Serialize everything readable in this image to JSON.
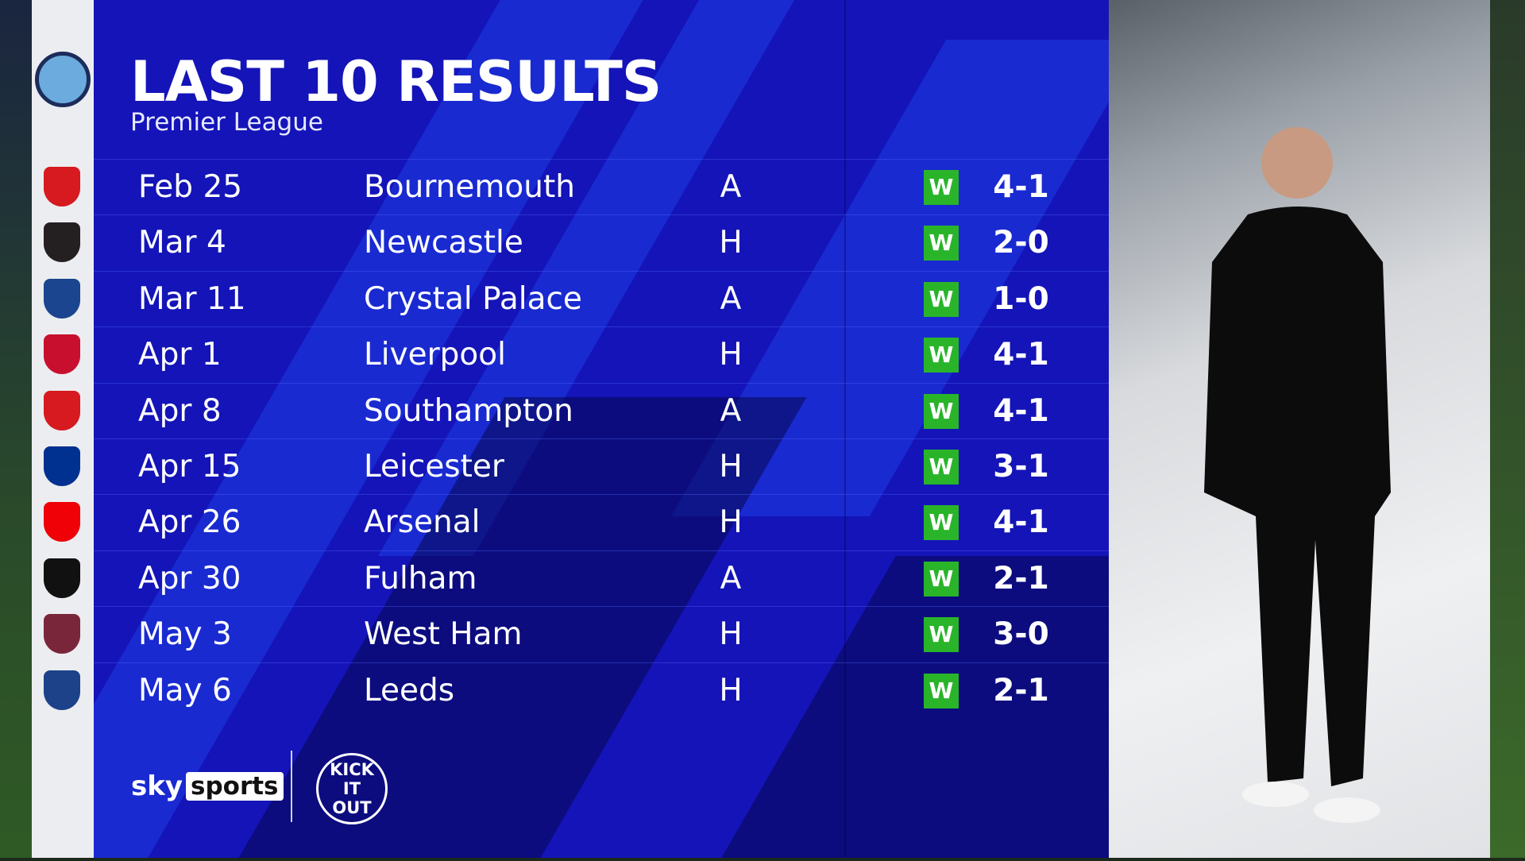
{
  "header": {
    "title": "LAST 10 RESULTS",
    "subtitle": "Premier League",
    "team_crest": "manchester-city-crest"
  },
  "colors": {
    "panel": "#1414b8",
    "win_badge": "#29b42a"
  },
  "results": [
    {
      "date": "Feb 25",
      "opponent": "Bournemouth",
      "venue": "A",
      "result": "W",
      "score": "4-1",
      "crest": "#d71920"
    },
    {
      "date": "Mar 4",
      "opponent": "Newcastle",
      "venue": "H",
      "result": "W",
      "score": "2-0",
      "crest": "#241f20"
    },
    {
      "date": "Mar 11",
      "opponent": "Crystal Palace",
      "venue": "A",
      "result": "W",
      "score": "1-0",
      "crest": "#1b458f"
    },
    {
      "date": "Apr 1",
      "opponent": "Liverpool",
      "venue": "H",
      "result": "W",
      "score": "4-1",
      "crest": "#c8102e"
    },
    {
      "date": "Apr 8",
      "opponent": "Southampton",
      "venue": "A",
      "result": "W",
      "score": "4-1",
      "crest": "#d71920"
    },
    {
      "date": "Apr 15",
      "opponent": "Leicester",
      "venue": "H",
      "result": "W",
      "score": "3-1",
      "crest": "#003090"
    },
    {
      "date": "Apr 26",
      "opponent": "Arsenal",
      "venue": "H",
      "result": "W",
      "score": "4-1",
      "crest": "#ef0107"
    },
    {
      "date": "Apr 30",
      "opponent": "Fulham",
      "venue": "A",
      "result": "W",
      "score": "2-1",
      "crest": "#111111"
    },
    {
      "date": "May 3",
      "opponent": "West Ham",
      "venue": "H",
      "result": "W",
      "score": "3-0",
      "crest": "#7a263a"
    },
    {
      "date": "May 6",
      "opponent": "Leeds",
      "venue": "H",
      "result": "W",
      "score": "2-1",
      "crest": "#1d428a"
    }
  ],
  "footer": {
    "sky": "sky",
    "sports": "sports",
    "kick_it_out": "KICK IT OUT"
  }
}
